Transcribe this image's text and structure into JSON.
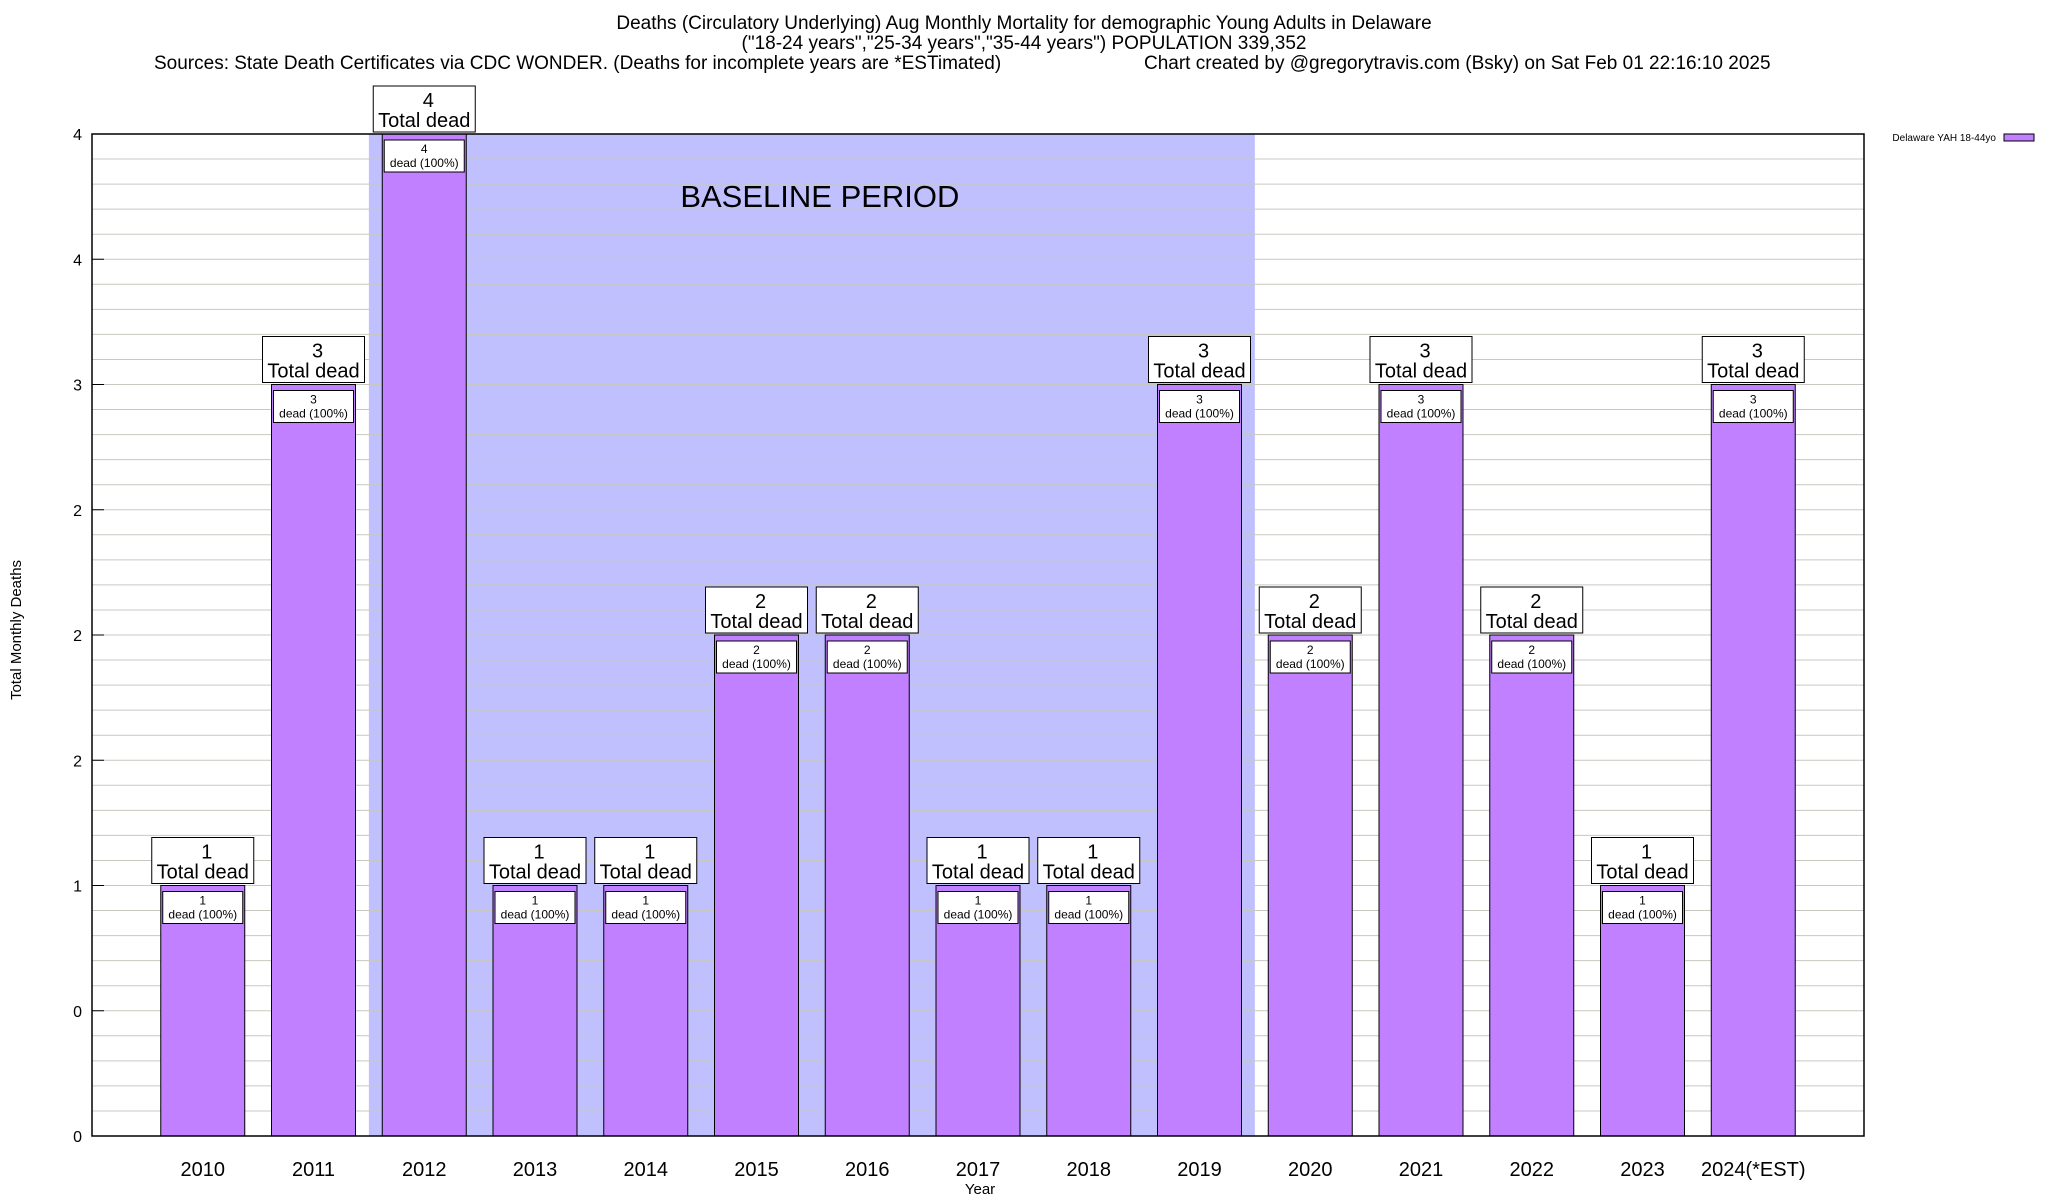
{
  "chart_data": {
    "type": "bar",
    "title_lines": [
      "Deaths (Circulatory Underlying) Aug Monthly Mortality for demographic Young Adults in Delaware",
      "(\"18-24 years\",\"25-34 years\",\"35-44 years\") POPULATION 339,352"
    ],
    "source_text": "Sources: State Death Certificates via CDC WONDER. (Deaths for incomplete years are *ESTimated)",
    "credit_text": "Chart created by @gregorytravis.com (Bsky) on Sat Feb 01 22:16:10 2025",
    "xlabel": "Year",
    "ylabel": "Total Monthly Deaths",
    "categories": [
      "2010",
      "2011",
      "2012",
      "2013",
      "2014",
      "2015",
      "2016",
      "2017",
      "2018",
      "2019",
      "2020",
      "2021",
      "2022",
      "2023",
      "2024(*EST)"
    ],
    "series": [
      {
        "name": "Delaware YAH 18-44yo",
        "color": "#c080ff",
        "values": [
          1,
          3,
          4,
          1,
          1,
          2,
          2,
          1,
          1,
          3,
          2,
          3,
          2,
          1,
          3
        ]
      }
    ],
    "total_label": "Total dead",
    "inner_label_suffix": "dead (100%)",
    "ylim": [
      0,
      4
    ],
    "yticks": [
      0,
      0.5,
      1,
      1.5,
      2,
      2.5,
      3,
      3.5,
      4
    ],
    "ytick_labels": [
      "0",
      "0",
      "1",
      "2",
      "2",
      "2",
      "3",
      "4",
      "4"
    ],
    "minor_grid_step": 0.1,
    "grid": true,
    "legend_position": "top-right, outside plot",
    "baseline": {
      "label": "BASELINE PERIOD",
      "from": "2012",
      "to": "2019",
      "color": "#c0c0ff"
    }
  }
}
